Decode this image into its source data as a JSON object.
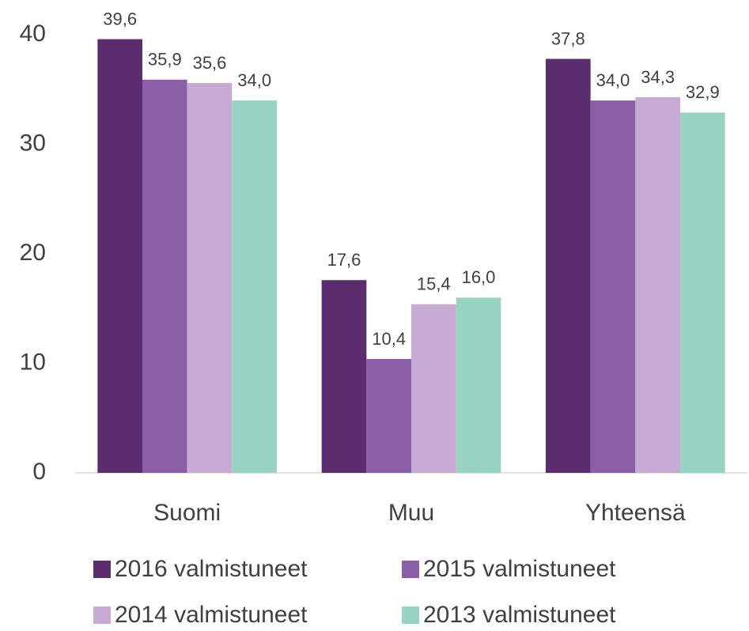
{
  "chart_data": {
    "type": "bar",
    "categories": [
      "Suomi",
      "Muu",
      "Yhteensä"
    ],
    "series": [
      {
        "name": "2016 valmistuneet",
        "color": "#5c2d6e",
        "values": [
          39.6,
          17.6,
          37.8
        ],
        "value_labels": [
          "39,6",
          "17,6",
          "37,8"
        ]
      },
      {
        "name": "2015 valmistuneet",
        "color": "#8b5ea8",
        "values": [
          35.9,
          10.4,
          34.0
        ],
        "value_labels": [
          "35,9",
          "10,4",
          "34,0"
        ]
      },
      {
        "name": "2014 valmistuneet",
        "color": "#c8abd4",
        "values": [
          35.6,
          15.4,
          34.3
        ],
        "value_labels": [
          "35,6",
          "15,4",
          "34,3"
        ]
      },
      {
        "name": "2013 valmistuneet",
        "color": "#97d3c2",
        "values": [
          34.0,
          16.0,
          32.9
        ],
        "value_labels": [
          "34,0",
          "16,0",
          "32,9"
        ]
      }
    ],
    "ylim": [
      0,
      40
    ],
    "yticks": [
      0,
      10,
      20,
      30,
      40
    ],
    "grid": false
  }
}
